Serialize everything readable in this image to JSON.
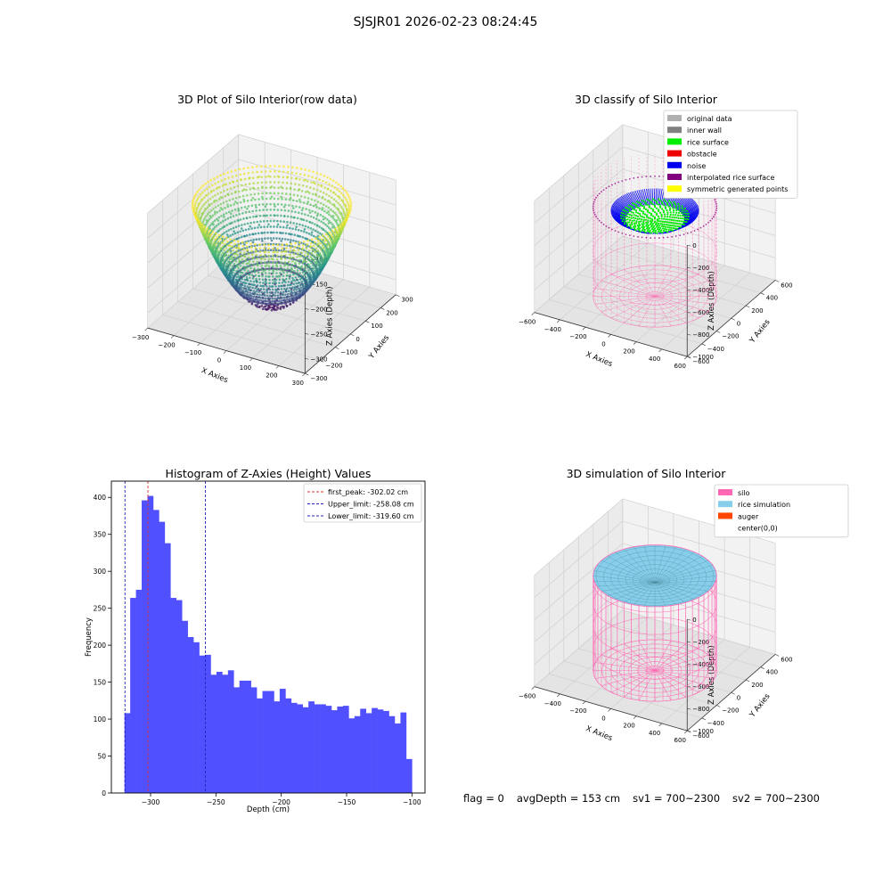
{
  "suptitle": "SJSJR01 2026-02-23 08:24:45",
  "footer": {
    "flag": "flag = 0",
    "avg_depth": "avgDepth = 153 cm",
    "sv1": "sv1 = 700~2300",
    "sv2": "sv2 = 700~2300"
  },
  "colors": {
    "hist_bar": "#5050ff",
    "first_peak_line": "#dd3333",
    "limit_line": "#2222bb",
    "silo": "#ff69b4",
    "rice_simulation": "#87ceeb",
    "auger": "#ff4500",
    "rice_surface": "#00ee00",
    "noise": "#0000ee"
  },
  "chart_data": [
    {
      "type": "scatter3d",
      "title": "3D Plot of Silo Interior(row data)",
      "xlabel": "X Axies",
      "ylabel": "Y Axies",
      "zlabel": "Z Axies (Depth)",
      "x_ticks": [
        "−300",
        "−200",
        "−100",
        "0",
        "100",
        "200",
        "300"
      ],
      "y_ticks": [
        "−300",
        "−200",
        "−100",
        "0",
        "100",
        "200",
        "300"
      ],
      "z_ticks": [
        "−100",
        "−150",
        "−200",
        "−250",
        "−300"
      ],
      "xlim": [
        -300,
        300
      ],
      "ylim": [
        -300,
        300
      ],
      "zlim": [
        -330,
        -100
      ],
      "colormap": "viridis",
      "shape": "bowl"
    },
    {
      "type": "scatter3d",
      "title": "3D classify of Silo Interior",
      "xlabel": "X Axies",
      "ylabel": "Y Axies",
      "zlabel": "Z Axies (Depth)",
      "x_ticks": [
        "−600",
        "−400",
        "−200",
        "0",
        "200",
        "400",
        "600"
      ],
      "y_ticks": [
        "−600",
        "−400",
        "−200",
        "0",
        "200",
        "400",
        "600"
      ],
      "z_ticks": [
        "0",
        "−200",
        "−400",
        "−600",
        "−800",
        "−1000"
      ],
      "xlim": [
        -600,
        600
      ],
      "ylim": [
        -600,
        600
      ],
      "zlim": [
        -1000,
        0
      ],
      "legend": [
        {
          "label": "original data",
          "color": "#b0b0b0"
        },
        {
          "label": "inner wall",
          "color": "#808080"
        },
        {
          "label": "rice surface",
          "color": "#00ee00"
        },
        {
          "label": "obstacle",
          "color": "#ee0000"
        },
        {
          "label": "noise",
          "color": "#0000ee"
        },
        {
          "label": "interpolated rice surface",
          "color": "#800080"
        },
        {
          "label": "symmetric generated points",
          "color": "#ffff00"
        }
      ]
    },
    {
      "type": "bar",
      "title": "Histogram of Z-Axies (Height) Values",
      "xlabel": "Depth (cm)",
      "ylabel": "Frequency",
      "xlim": [
        -330,
        -90
      ],
      "ylim": [
        0,
        422
      ],
      "x_ticks": [
        -300,
        -250,
        -200,
        -150,
        -100
      ],
      "x_tick_labels": [
        "−300",
        "−250",
        "−200",
        "−150",
        "−100"
      ],
      "y_ticks": [
        0,
        50,
        100,
        150,
        200,
        250,
        300,
        350,
        400
      ],
      "bin_start": -320,
      "bin_width": 4.4,
      "values": [
        108,
        264,
        275,
        396,
        402,
        383,
        367,
        338,
        264,
        261,
        233,
        211,
        204,
        186,
        187,
        160,
        164,
        160,
        166,
        143,
        152,
        152,
        143,
        128,
        138,
        138,
        124,
        141,
        128,
        122,
        120,
        116,
        124,
        120,
        120,
        118,
        112,
        117,
        118,
        101,
        104,
        114,
        108,
        115,
        113,
        111,
        104,
        94,
        109,
        46
      ],
      "legend_position": "top-right",
      "lines": [
        {
          "label": "first_peak: -302.02 cm",
          "x": -302.02,
          "color": "#dd3333"
        },
        {
          "label": "Upper_limit: -258.08 cm",
          "x": -258.08,
          "color": "#2222bb"
        },
        {
          "label": "Lower_limit: -319.60 cm",
          "x": -319.6,
          "color": "#2222bb"
        }
      ]
    },
    {
      "type": "surface3d",
      "title": "3D simulation of Silo Interior",
      "xlabel": "X Axies",
      "ylabel": "Y Axies",
      "zlabel": "Z Axies (Depth)",
      "x_ticks": [
        "−600",
        "−400",
        "−200",
        "0",
        "200",
        "400",
        "600"
      ],
      "y_ticks": [
        "−600",
        "−400",
        "−200",
        "0",
        "200",
        "400",
        "600"
      ],
      "z_ticks": [
        "0",
        "−200",
        "−400",
        "−600",
        "−800",
        "−1000"
      ],
      "xlim": [
        -600,
        600
      ],
      "ylim": [
        -600,
        600
      ],
      "zlim": [
        -1000,
        0
      ],
      "legend": [
        {
          "label": "silo",
          "color": "#ff69b4"
        },
        {
          "label": "rice simulation",
          "color": "#87ceeb"
        },
        {
          "label": "auger",
          "color": "#ff4500"
        },
        {
          "label": "center(0,0)",
          "color": "#ffffff"
        }
      ]
    }
  ]
}
